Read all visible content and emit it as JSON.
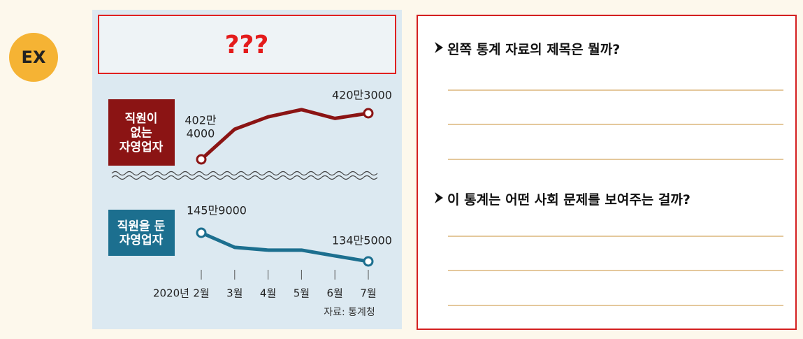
{
  "badge": "EX",
  "chart_data": {
    "type": "line",
    "title": "???",
    "year_label": "2020년",
    "categories": [
      "2월",
      "3월",
      "4월",
      "5월",
      "6월",
      "7월"
    ],
    "series": [
      {
        "name": "직원이\n없는\n자영업자",
        "color": "#8b1414",
        "values": [
          4024000,
          4141000,
          4189000,
          4217000,
          4183000,
          4203000
        ],
        "value_labels": [
          "402만\n4000",
          null,
          null,
          null,
          null,
          "420만3000"
        ]
      },
      {
        "name": "직원을 둔\n자영업자",
        "color": "#1c6f8f",
        "values": [
          1459000,
          1401000,
          1390000,
          1390000,
          1367000,
          1345000
        ],
        "value_labels": [
          "145만9000",
          null,
          null,
          null,
          null,
          "134만5000"
        ]
      }
    ],
    "source": "자료: 통계청"
  },
  "questions": [
    {
      "text": "왼쪽 통계 자료의 제목은 뭘까?"
    },
    {
      "text": "이 통계는 어떤 사회 문제를 보여주는 걸까?"
    }
  ]
}
